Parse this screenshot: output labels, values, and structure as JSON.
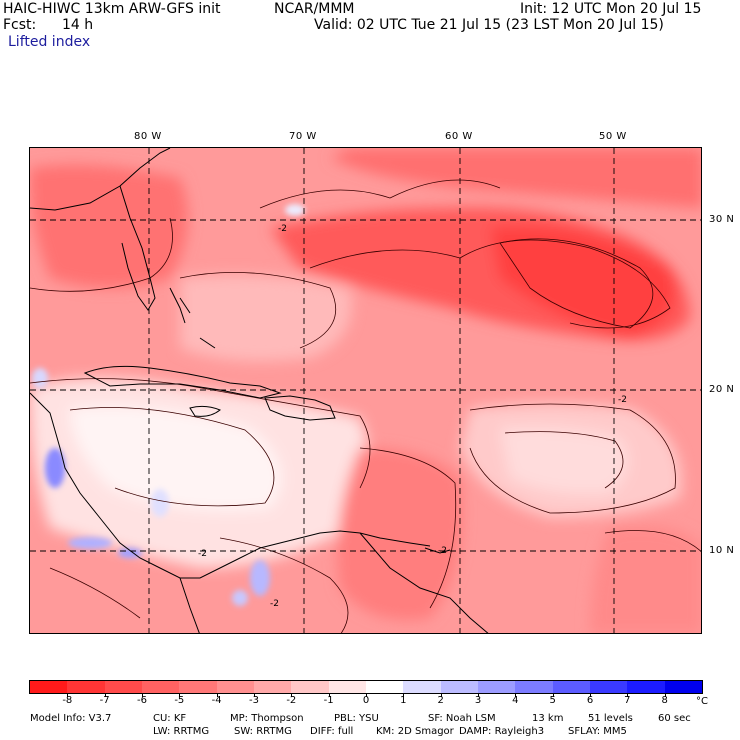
{
  "header": {
    "model_title": "HAIC-HIWC 13km ARW-GFS init",
    "org": "NCAR/MMM",
    "init": "Init: 12 UTC Mon 20 Jul 15",
    "fcst_label": "Fcst:",
    "fcst_value": "14 h",
    "valid": "Valid: 02 UTC Tue 21 Jul 15 (23 LST Mon 20 Jul 15)",
    "field_name": "Lifted index"
  },
  "map": {
    "lon_labels": [
      "80 W",
      "70 W",
      "60 W",
      "50 W"
    ],
    "lat_labels": [
      "30 N",
      "20 N",
      "10 N"
    ],
    "grid_lon_deg": [
      -80,
      -70,
      -60,
      -50
    ],
    "grid_lat_deg": [
      30,
      20,
      10
    ],
    "contour_labels": [
      "-2",
      "-2",
      "-2",
      "-2",
      "-2"
    ]
  },
  "colorbar": {
    "tick_labels": [
      "-8",
      "-7",
      "-6",
      "-5",
      "-4",
      "-3",
      "-2",
      "-1",
      "0",
      "1",
      "2",
      "3",
      "4",
      "5",
      "6",
      "7",
      "8"
    ],
    "unit": "°C",
    "colors": [
      "#ff1a1a",
      "#ff3535",
      "#ff4b4b",
      "#ff6262",
      "#ff7878",
      "#ff9090",
      "#ffa9a9",
      "#ffc7c7",
      "#ffe6e6",
      "#ffffff",
      "#dcdcff",
      "#bcbcff",
      "#9c9cff",
      "#7c7cff",
      "#5c5cff",
      "#3a3aff",
      "#1c1cff",
      "#0000ee"
    ]
  },
  "footer": {
    "line1": [
      "Model Info: V3.7",
      "CU: KF",
      "MP: Thompson",
      "PBL: YSU",
      "SF: Noah LSM",
      "13 km",
      "51 levels",
      "60 sec"
    ],
    "line2": [
      "LW: RRTMG",
      "SW: RRTMG",
      "DIFF: full",
      "KM: 2D Smagor",
      "DAMP: Rayleigh3",
      "SFLAY: MM5"
    ]
  }
}
